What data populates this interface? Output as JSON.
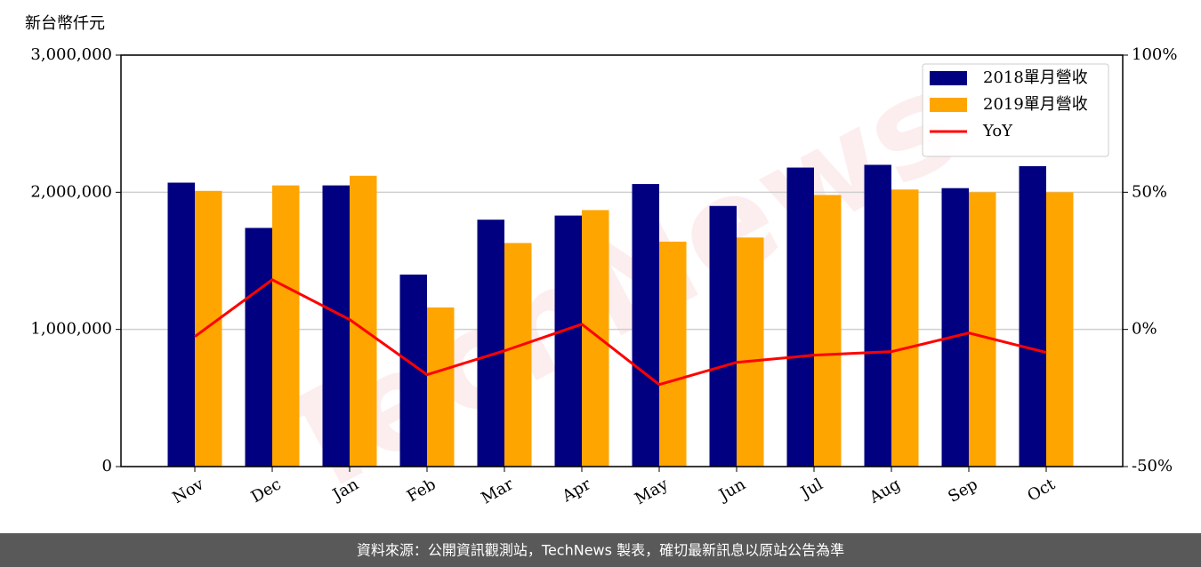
{
  "chart_data": {
    "type": "bar_line",
    "y_label": "新台幣仟元",
    "watermark": "TechNews",
    "source": "資料來源：公開資訊觀測站，TechNews 製表，確切最新訊息以原站公告為準",
    "categories": [
      "Nov",
      "Dec",
      "Jan",
      "Feb",
      "Mar",
      "Apr",
      "May",
      "Jun",
      "Jul",
      "Aug",
      "Sep",
      "Oct"
    ],
    "series": [
      {
        "name": "2018單月營收",
        "color": "#000080",
        "type": "bar",
        "values": [
          2070000,
          1740000,
          2050000,
          1400000,
          1800000,
          1830000,
          2060000,
          1900000,
          2180000,
          2200000,
          2030000,
          2190000
        ]
      },
      {
        "name": "2019單月營收",
        "color": "#ffa500",
        "type": "bar",
        "values": [
          2010000,
          2050000,
          2120000,
          1160000,
          1630000,
          1870000,
          1640000,
          1670000,
          1980000,
          2020000,
          2000000,
          2000000
        ]
      },
      {
        "name": "YoY",
        "color": "#ff0000",
        "type": "line",
        "axis": "y2",
        "values": [
          -2.6,
          18.1,
          3.6,
          -16.5,
          -7.8,
          1.9,
          -20.1,
          -12,
          -9.4,
          -8.1,
          -1.3,
          -8.4
        ]
      }
    ],
    "ylim": [
      0,
      3000000
    ],
    "yticks": [
      0,
      {
        "value": 1000000,
        "label": "1,000,000"
      },
      {
        "value": 2000000,
        "label": "2,000,000"
      },
      {
        "value": 3000000,
        "label": "3,000,000"
      }
    ],
    "y2lim": [
      -50,
      100
    ],
    "y2ticks": [
      {
        "value": -50,
        "label": "-50%"
      },
      {
        "value": 0,
        "label": "0%"
      },
      {
        "value": 50,
        "label": "50%"
      },
      {
        "value": 100,
        "label": "100%"
      }
    ],
    "grid": true,
    "legend": "upper right"
  }
}
